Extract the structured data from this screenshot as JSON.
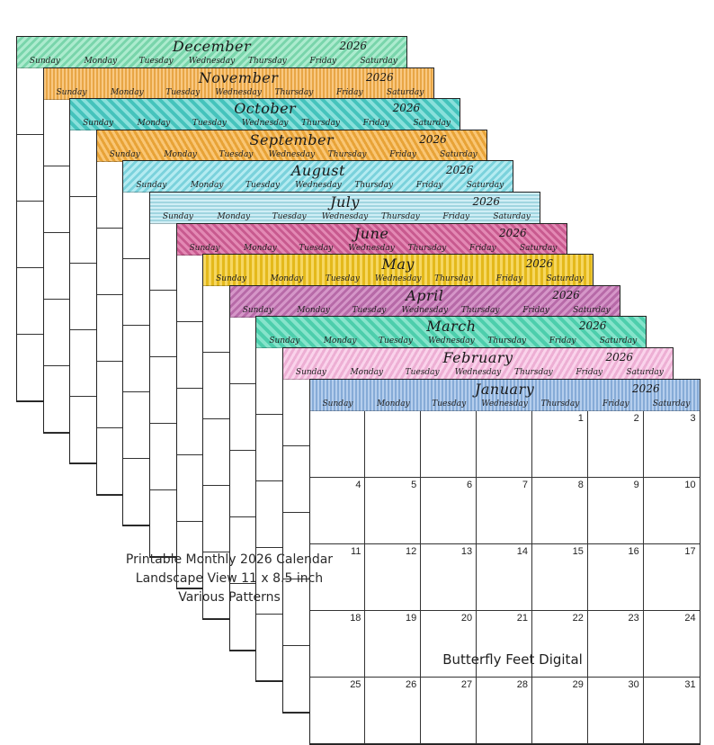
{
  "year": "2026",
  "weekdays": [
    "Sunday",
    "Monday",
    "Tuesday",
    "Wednesday",
    "Thursday",
    "Friday",
    "Saturday"
  ],
  "months": [
    {
      "name": "December",
      "pattern": "mint",
      "color": "#7fe0b4"
    },
    {
      "name": "November",
      "pattern": "orange",
      "color": "#f6b04a"
    },
    {
      "name": "October",
      "pattern": "teal",
      "color": "#49cfc8"
    },
    {
      "name": "September",
      "pattern": "gold",
      "color": "#f7ad3a"
    },
    {
      "name": "August",
      "pattern": "cyan",
      "color": "#82dde8"
    },
    {
      "name": "July",
      "pattern": "sky",
      "color": "#a9e0ec"
    },
    {
      "name": "June",
      "pattern": "rose",
      "color": "#d9629b"
    },
    {
      "name": "May",
      "pattern": "yellow",
      "color": "#f2c51d"
    },
    {
      "name": "April",
      "pattern": "mauve",
      "color": "#c773b6"
    },
    {
      "name": "March",
      "pattern": "aqua",
      "color": "#51d9b5"
    },
    {
      "name": "February",
      "pattern": "pink",
      "color": "#f7b6dd"
    },
    {
      "name": "January",
      "pattern": "blue",
      "color": "#8db4e3"
    }
  ],
  "january_dates": [
    "",
    "",
    "",
    "",
    "1",
    "2",
    "3",
    "4",
    "5",
    "6",
    "7",
    "8",
    "9",
    "10",
    "11",
    "12",
    "13",
    "14",
    "15",
    "16",
    "17",
    "18",
    "19",
    "20",
    "21",
    "22",
    "23",
    "24",
    "25",
    "26",
    "27",
    "28",
    "29",
    "30",
    "31"
  ],
  "caption": {
    "line1": "Printable Monthly 2026 Calendar",
    "line2": "Landscape View 11 x 8.5 inch",
    "line3": "Various Patterns"
  },
  "brand": "Butterfly Feet Digital"
}
